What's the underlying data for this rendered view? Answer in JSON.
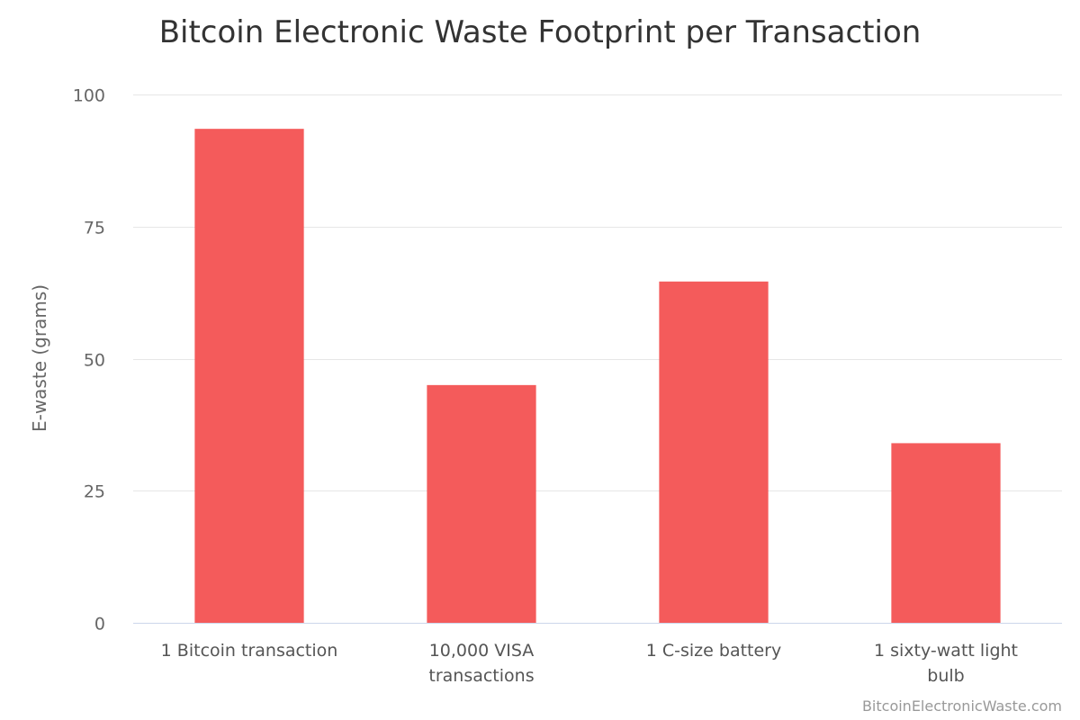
{
  "chart_data": {
    "type": "bar",
    "title": "Bitcoin Electronic Waste Footprint per Transaction",
    "xlabel": "",
    "ylabel": "E-waste (grams)",
    "categories": [
      [
        "1 Bitcoin transaction"
      ],
      [
        "10,000 VISA",
        "transactions"
      ],
      [
        "1 C-size battery"
      ],
      [
        "1 sixty-watt light",
        "bulb"
      ]
    ],
    "series": [
      {
        "name": "E-waste (grams)",
        "values": [
          93.5,
          45,
          64.6,
          34
        ],
        "color": "#f45b5b"
      }
    ],
    "ylim": [
      0,
      100
    ],
    "yticks": [
      0,
      25,
      50,
      75,
      100
    ],
    "grid": true,
    "legend": "none"
  },
  "credits": "BitcoinElectronicWaste.com",
  "colors": {
    "bar": "#f45b5b",
    "grid": "#e6e6e6",
    "axis": "#ccd6eb"
  }
}
